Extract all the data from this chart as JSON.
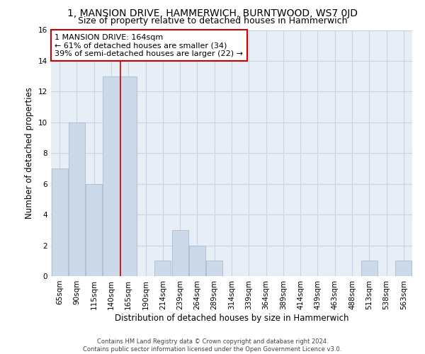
{
  "title": "1, MANSION DRIVE, HAMMERWICH, BURNTWOOD, WS7 0JD",
  "subtitle": "Size of property relative to detached houses in Hammerwich",
  "xlabel": "Distribution of detached houses by size in Hammerwich",
  "ylabel": "Number of detached properties",
  "categories": [
    "65sqm",
    "90sqm",
    "115sqm",
    "140sqm",
    "165sqm",
    "190sqm",
    "214sqm",
    "239sqm",
    "264sqm",
    "289sqm",
    "314sqm",
    "339sqm",
    "364sqm",
    "389sqm",
    "414sqm",
    "439sqm",
    "463sqm",
    "488sqm",
    "513sqm",
    "538sqm",
    "563sqm"
  ],
  "values": [
    7,
    10,
    6,
    13,
    13,
    0,
    1,
    3,
    2,
    1,
    0,
    0,
    0,
    0,
    0,
    0,
    0,
    0,
    1,
    0,
    1
  ],
  "bar_color": "#ccd9e8",
  "bar_edge_color": "#aabbd0",
  "highlight_line_index": 4,
  "annotation_text": "1 MANSION DRIVE: 164sqm\n← 61% of detached houses are smaller (34)\n39% of semi-detached houses are larger (22) →",
  "annotation_box_color": "#ffffff",
  "annotation_box_edge_color": "#cc0000",
  "ylim": [
    0,
    16
  ],
  "yticks": [
    0,
    2,
    4,
    6,
    8,
    10,
    12,
    14,
    16
  ],
  "title_fontsize": 10,
  "subtitle_fontsize": 9,
  "xlabel_fontsize": 8.5,
  "ylabel_fontsize": 8.5,
  "tick_fontsize": 7.5,
  "annotation_fontsize": 8,
  "footer_line1": "Contains HM Land Registry data © Crown copyright and database right 2024.",
  "footer_line2": "Contains public sector information licensed under the Open Government Licence v3.0.",
  "background_color": "#ffffff",
  "plot_bg_color": "#e8eef6",
  "grid_color": "#c8d4e4",
  "red_line_color": "#cc0000"
}
